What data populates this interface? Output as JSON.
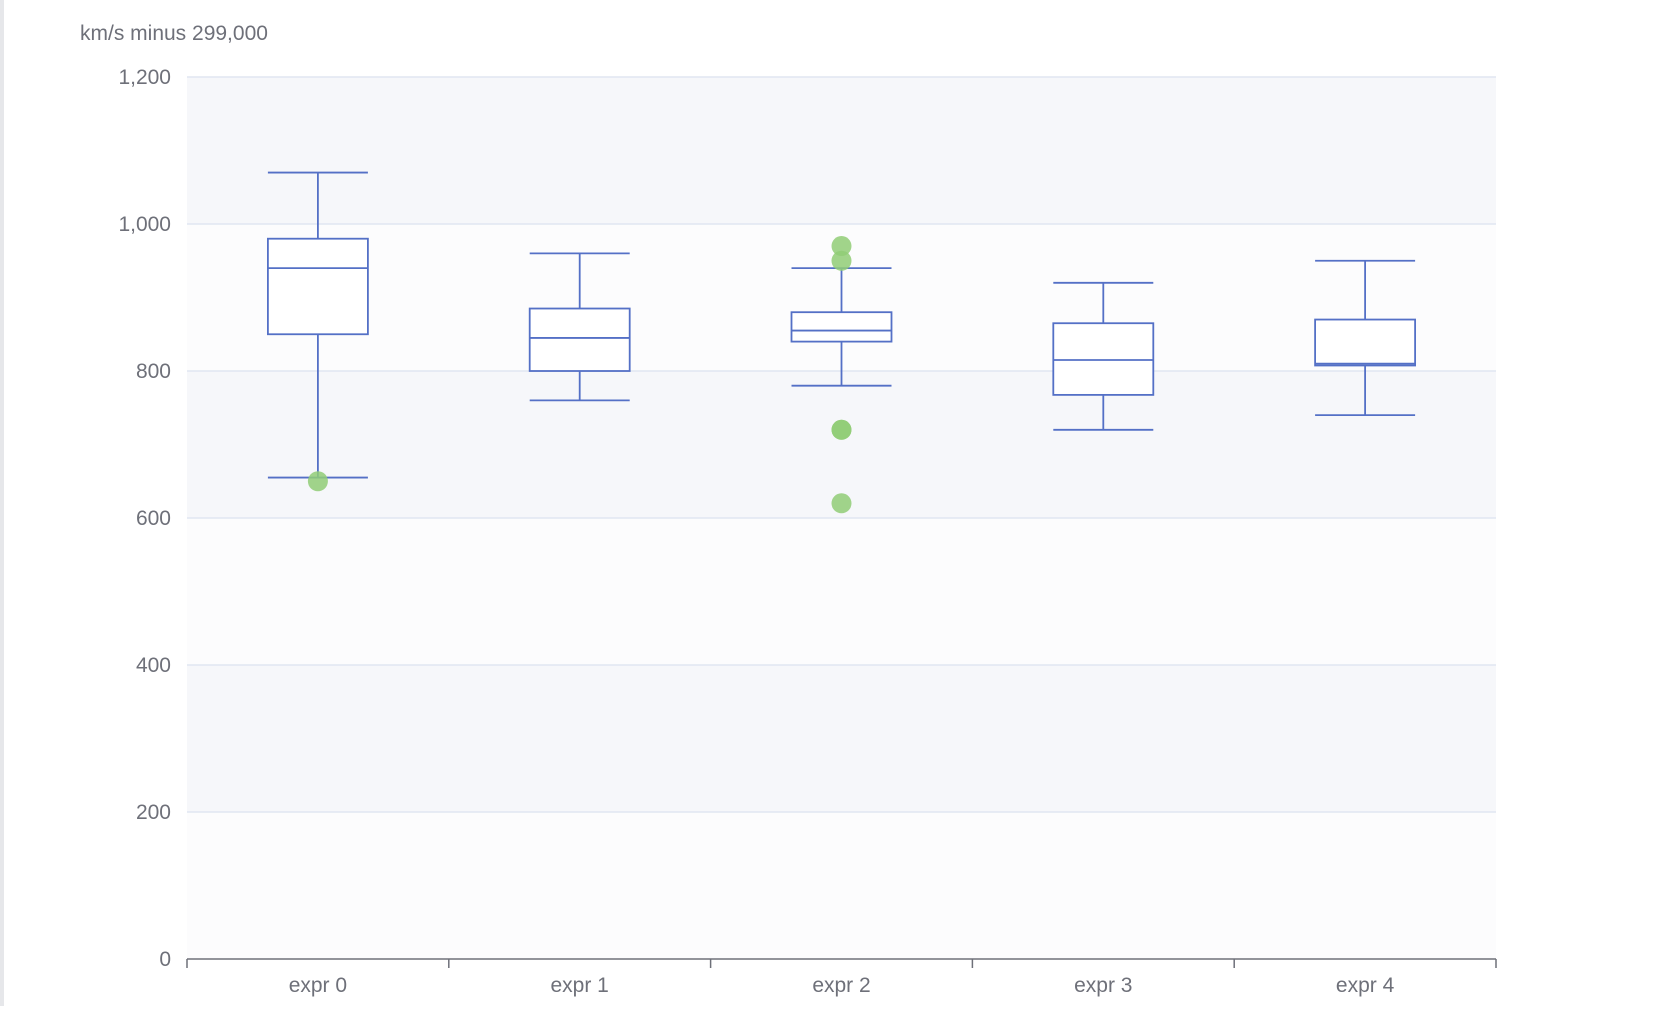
{
  "chart_data": {
    "type": "boxplot",
    "title": "",
    "xlabel": "",
    "ylabel": "km/s minus 299,000",
    "ylim": [
      0,
      1200
    ],
    "yticks": [
      0,
      200,
      400,
      600,
      800,
      1000,
      1200
    ],
    "ytick_labels": [
      "0",
      "200",
      "400",
      "600",
      "800",
      "1,000",
      "1,200"
    ],
    "grid": true,
    "categories": [
      "expr 0",
      "expr 1",
      "expr 2",
      "expr 3",
      "expr 4"
    ],
    "boxes": [
      {
        "min": 655,
        "q1": 850,
        "median": 940,
        "q3": 980,
        "max": 1070
      },
      {
        "min": 760,
        "q1": 800,
        "median": 845,
        "q3": 885,
        "max": 960
      },
      {
        "min": 780,
        "q1": 840,
        "median": 855,
        "q3": 880,
        "max": 940
      },
      {
        "min": 720,
        "q1": 767.5,
        "median": 815,
        "q3": 865,
        "max": 920
      },
      {
        "min": 740,
        "q1": 807.5,
        "median": 810,
        "q3": 870,
        "max": 950
      }
    ],
    "outliers": [
      {
        "category": 0,
        "value": 650
      },
      {
        "category": 2,
        "value": 970
      },
      {
        "category": 2,
        "value": 950
      },
      {
        "category": 2,
        "value": 720
      },
      {
        "category": 2,
        "value": 720
      },
      {
        "category": 2,
        "value": 620
      }
    ],
    "colors": {
      "box": "#5470c6",
      "outlier": "#91cc75",
      "band": "#f6f7fa",
      "gridline": "#e0e6f1",
      "axis": "#6e7079",
      "text": "#6e7079"
    }
  }
}
